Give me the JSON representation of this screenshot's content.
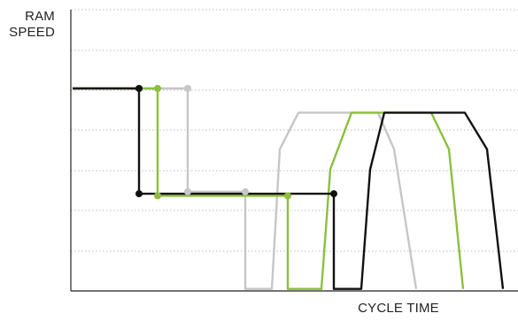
{
  "chart_data": {
    "type": "line",
    "title": "",
    "xlabel": "CYCLE TIME",
    "ylabel": "RAM SPEED",
    "ylabel_lines": [
      "RAM",
      "SPEED"
    ],
    "xlim": [
      0,
      585
    ],
    "ylim": [
      0,
      100
    ],
    "grid": "horizontal-dotted",
    "gridlines": [
      0,
      20,
      40,
      60,
      80,
      100
    ],
    "colors": {
      "black": "#111111",
      "green": "#8cbf3f",
      "gray": "#c6c6c6",
      "grid": "#bbbbbb",
      "axis": "#222222"
    },
    "series": [
      {
        "color_key": "gray",
        "points": [
          [
            82,
            100
          ],
          [
            212,
            100
          ],
          [
            212,
            49
          ],
          [
            277,
            49
          ],
          [
            277,
            1
          ],
          [
            307,
            1
          ],
          [
            316,
            70
          ],
          [
            337,
            88
          ],
          [
            427,
            88
          ],
          [
            445,
            70
          ],
          [
            470,
            1
          ]
        ],
        "dots": [
          [
            212,
            100
          ],
          [
            212,
            49
          ],
          [
            277,
            49
          ]
        ]
      },
      {
        "color_key": "green",
        "points": [
          [
            82,
            100
          ],
          [
            178,
            100
          ],
          [
            178,
            47
          ],
          [
            325,
            47
          ],
          [
            325,
            1
          ],
          [
            363,
            1
          ],
          [
            373,
            60
          ],
          [
            397,
            88
          ],
          [
            487,
            88
          ],
          [
            507,
            70
          ],
          [
            523,
            1
          ]
        ],
        "dots": [
          [
            178,
            100
          ],
          [
            178,
            47
          ],
          [
            325,
            47
          ]
        ]
      },
      {
        "color_key": "black",
        "points": [
          [
            82,
            100
          ],
          [
            157,
            100
          ],
          [
            157,
            48
          ],
          [
            377,
            48
          ],
          [
            377,
            1
          ],
          [
            408,
            1
          ],
          [
            418,
            60
          ],
          [
            434,
            88
          ],
          [
            525,
            88
          ],
          [
            550,
            70
          ],
          [
            568,
            1
          ]
        ],
        "dots": [
          [
            157,
            100
          ],
          [
            157,
            48
          ],
          [
            377,
            48
          ]
        ]
      }
    ]
  }
}
